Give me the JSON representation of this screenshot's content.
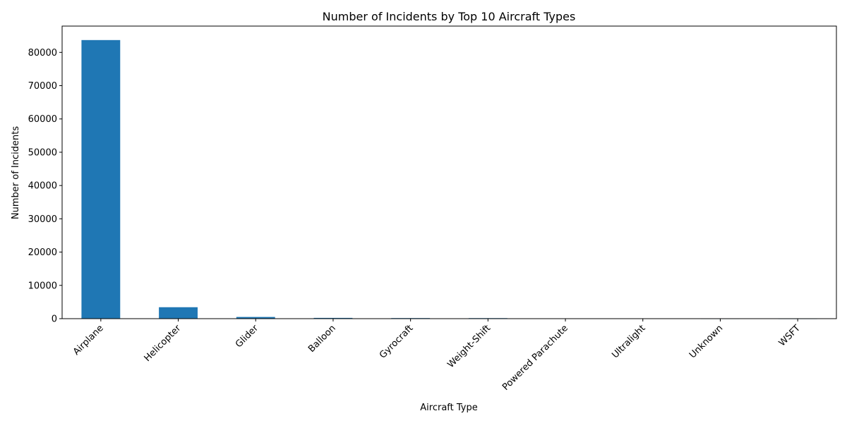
{
  "chart_data": {
    "type": "bar",
    "title": "Number of Incidents by Top 10 Aircraft Types",
    "xlabel": "Aircraft Type",
    "ylabel": "Number of Incidents",
    "categories": [
      "Airplane",
      "Helicopter",
      "Glider",
      "Balloon",
      "Gyrocraft",
      "Weight-Shift",
      "Powered Parachute",
      "Ultralight",
      "Unknown",
      "WSFT"
    ],
    "values": [
      83700,
      3440,
      509,
      231,
      173,
      161,
      91,
      30,
      14,
      9
    ],
    "ylim": [
      0,
      87900
    ],
    "yticks": [
      0,
      10000,
      20000,
      30000,
      40000,
      50000,
      60000,
      70000,
      80000
    ],
    "ytick_labels": [
      "0",
      "10000",
      "20000",
      "30000",
      "40000",
      "50000",
      "60000",
      "70000",
      "80000"
    ],
    "bar_color": "#1f77b4",
    "grid": false,
    "legend": "none",
    "xtick_rotation": 45
  }
}
